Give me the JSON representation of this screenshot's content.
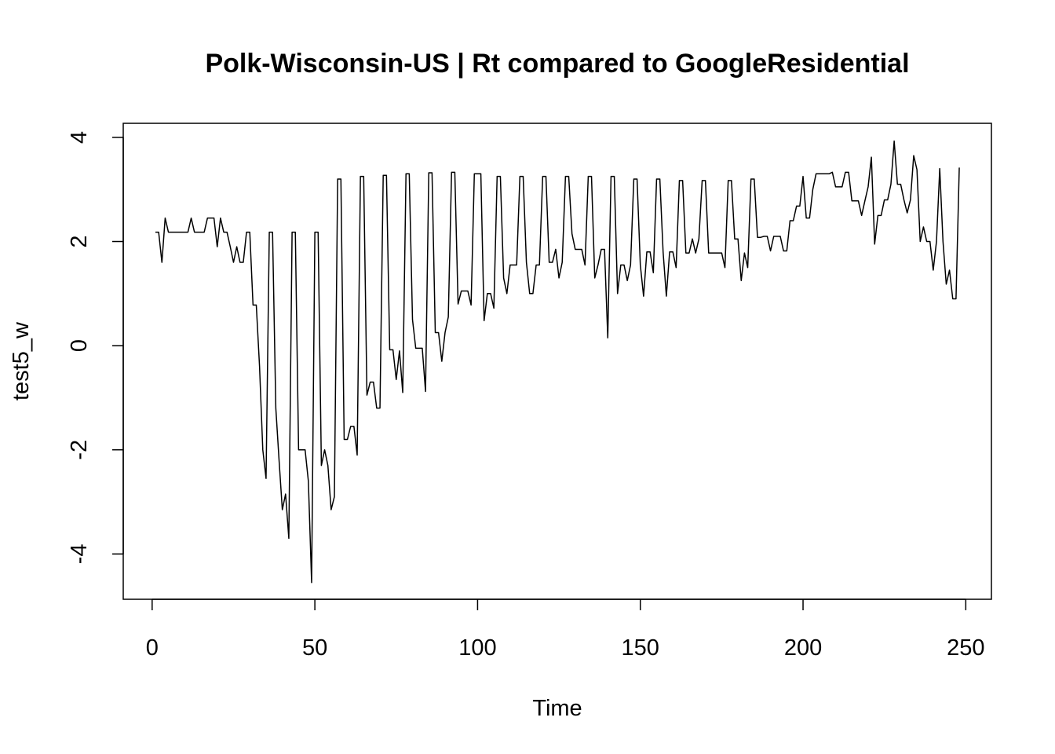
{
  "chart_data": {
    "type": "line",
    "title": "Polk-Wisconsin-US | Rt compared to GoogleResidential",
    "xlabel": "Time",
    "ylabel": "test5_w",
    "x": [
      1,
      2,
      3,
      4,
      5,
      6,
      7,
      8,
      9,
      10,
      11,
      12,
      13,
      14,
      15,
      16,
      17,
      18,
      19,
      20,
      21,
      22,
      23,
      24,
      25,
      26,
      27,
      28,
      29,
      30,
      31,
      32,
      33,
      34,
      35,
      36,
      37,
      38,
      39,
      40,
      41,
      42,
      43,
      44,
      45,
      46,
      47,
      48,
      49,
      50,
      51,
      52,
      53,
      54,
      55,
      56,
      57,
      58,
      59,
      60,
      61,
      62,
      63,
      64,
      65,
      66,
      67,
      68,
      69,
      70,
      71,
      72,
      73,
      74,
      75,
      76,
      77,
      78,
      79,
      80,
      81,
      82,
      83,
      84,
      85,
      86,
      87,
      88,
      89,
      90,
      91,
      92,
      93,
      94,
      95,
      96,
      97,
      98,
      99,
      100,
      101,
      102,
      103,
      104,
      105,
      106,
      107,
      108,
      109,
      110,
      111,
      112,
      113,
      114,
      115,
      116,
      117,
      118,
      119,
      120,
      121,
      122,
      123,
      124,
      125,
      126,
      127,
      128,
      129,
      130,
      131,
      132,
      133,
      134,
      135,
      136,
      137,
      138,
      139,
      140,
      141,
      142,
      143,
      144,
      145,
      146,
      147,
      148,
      149,
      150,
      151,
      152,
      153,
      154,
      155,
      156,
      157,
      158,
      159,
      160,
      161,
      162,
      163,
      164,
      165,
      166,
      167,
      168,
      169,
      170,
      171,
      172,
      173,
      174,
      175,
      176,
      177,
      178,
      179,
      180,
      181,
      182,
      183,
      184,
      185,
      186,
      187,
      188,
      189,
      190,
      191,
      192,
      193,
      194,
      195,
      196,
      197,
      198,
      199,
      200,
      201,
      202,
      203,
      204,
      205,
      206,
      207,
      208,
      209,
      210,
      211,
      212,
      213,
      214,
      215,
      216,
      217,
      218,
      219,
      220,
      221,
      222,
      223,
      224,
      225,
      226,
      227,
      228,
      229,
      230,
      231,
      232,
      233,
      234,
      235,
      236,
      237,
      238,
      239,
      240,
      241,
      242,
      243,
      244,
      245,
      246,
      247,
      248
    ],
    "series": [
      {
        "name": "test5_w",
        "color": "#000000",
        "values": [
          2.18,
          2.18,
          1.6,
          2.45,
          2.18,
          2.18,
          2.18,
          2.18,
          2.18,
          2.18,
          2.18,
          2.45,
          2.18,
          2.18,
          2.18,
          2.18,
          2.45,
          2.45,
          2.45,
          1.9,
          2.45,
          2.18,
          2.18,
          1.9,
          1.6,
          1.9,
          1.6,
          1.6,
          2.18,
          2.18,
          0.78,
          0.78,
          -0.4,
          -2.0,
          -2.55,
          2.18,
          2.18,
          -1.2,
          -2.2,
          -3.15,
          -2.85,
          -3.7,
          2.18,
          2.18,
          -2.0,
          -2.0,
          -2.0,
          -2.6,
          -4.55,
          2.18,
          2.18,
          -2.3,
          -2.0,
          -2.3,
          -3.15,
          -2.9,
          3.2,
          3.2,
          -1.8,
          -1.8,
          -1.55,
          -1.55,
          -2.1,
          3.25,
          3.25,
          -0.95,
          -0.7,
          -0.7,
          -1.2,
          -1.2,
          3.27,
          3.27,
          -0.08,
          -0.08,
          -0.65,
          -0.1,
          -0.9,
          3.3,
          3.3,
          0.5,
          -0.05,
          -0.05,
          -0.05,
          -0.88,
          3.32,
          3.32,
          0.25,
          0.25,
          -0.3,
          0.25,
          0.55,
          3.33,
          3.33,
          0.8,
          1.05,
          1.05,
          1.05,
          0.78,
          3.3,
          3.3,
          3.3,
          0.48,
          1.0,
          1.0,
          0.72,
          3.25,
          3.25,
          1.3,
          1.0,
          1.55,
          1.55,
          1.55,
          3.25,
          3.25,
          1.6,
          1.0,
          1.0,
          1.55,
          1.55,
          3.25,
          3.25,
          1.6,
          1.6,
          1.85,
          1.3,
          1.6,
          3.25,
          3.25,
          2.15,
          1.85,
          1.85,
          1.85,
          1.55,
          3.25,
          3.25,
          1.3,
          1.55,
          1.85,
          1.85,
          0.15,
          3.25,
          3.25,
          1.0,
          1.55,
          1.55,
          1.25,
          1.55,
          3.2,
          3.2,
          1.55,
          0.95,
          1.8,
          1.8,
          1.4,
          3.2,
          3.2,
          1.8,
          0.95,
          1.8,
          1.8,
          1.5,
          3.17,
          3.17,
          1.78,
          1.78,
          2.05,
          1.78,
          2.05,
          3.17,
          3.17,
          1.78,
          1.78,
          1.78,
          1.78,
          1.78,
          1.5,
          3.17,
          3.17,
          2.05,
          2.05,
          1.25,
          1.78,
          1.5,
          3.2,
          3.2,
          2.08,
          2.08,
          2.1,
          2.1,
          1.82,
          2.1,
          2.1,
          2.1,
          1.82,
          1.82,
          2.4,
          2.4,
          2.68,
          2.68,
          3.25,
          2.45,
          2.45,
          3.0,
          3.3,
          3.3,
          3.3,
          3.3,
          3.3,
          3.33,
          3.05,
          3.05,
          3.05,
          3.33,
          3.33,
          2.78,
          2.78,
          2.78,
          2.5,
          2.78,
          3.05,
          3.62,
          1.95,
          2.5,
          2.5,
          2.8,
          2.8,
          3.1,
          3.93,
          3.1,
          3.1,
          2.8,
          2.55,
          2.8,
          3.65,
          3.38,
          2.0,
          2.28,
          2.0,
          2.0,
          1.45,
          2.0,
          3.4,
          2.0,
          1.18,
          1.45,
          0.9,
          0.9,
          3.42
        ]
      }
    ],
    "xlim": [
      -8.88,
      257.88
    ],
    "ylim": [
      -4.87,
      4.27
    ],
    "xticks": [
      0,
      50,
      100,
      150,
      200,
      250
    ],
    "yticks": [
      -4,
      -2,
      0,
      2,
      4
    ],
    "grid": false
  }
}
